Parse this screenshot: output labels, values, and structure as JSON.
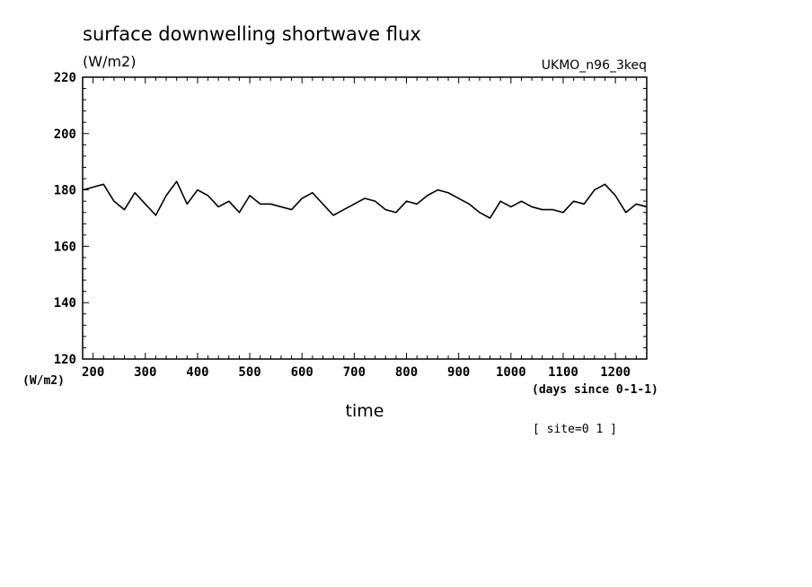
{
  "chart_data": {
    "type": "line",
    "title": "surface downwelling shortwave flux",
    "units_label": "(W/m2)",
    "model_label": "UKMO_n96_3keq",
    "y_axis_unit": "(W/m2)",
    "xlabel": "time",
    "x_unit": "(days since 0-1-1)",
    "site_label": "[ site=0 1 ]",
    "xlim": [
      180,
      1260
    ],
    "ylim": [
      120,
      220
    ],
    "xticks": [
      200,
      300,
      400,
      500,
      600,
      700,
      800,
      900,
      1000,
      1100,
      1200
    ],
    "yticks": [
      120,
      140,
      160,
      180,
      200,
      220
    ],
    "grid": false,
    "series": [
      {
        "x": [
          180,
          200,
          220,
          240,
          260,
          280,
          300,
          320,
          340,
          360,
          380,
          400,
          420,
          440,
          460,
          480,
          500,
          520,
          540,
          560,
          580,
          600,
          620,
          640,
          660,
          680,
          700,
          720,
          740,
          760,
          780,
          800,
          820,
          840,
          860,
          880,
          900,
          920,
          940,
          960,
          980,
          1000,
          1020,
          1040,
          1060,
          1080,
          1100,
          1120,
          1140,
          1160,
          1180,
          1200,
          1220,
          1240,
          1260
        ],
        "values": [
          180,
          181,
          182,
          176,
          173,
          179,
          175,
          171,
          178,
          183,
          175,
          180,
          178,
          174,
          176,
          172,
          178,
          175,
          175,
          174,
          173,
          177,
          179,
          175,
          171,
          173,
          175,
          177,
          176,
          173,
          172,
          176,
          175,
          178,
          180,
          179,
          177,
          175,
          172,
          170,
          176,
          174,
          176,
          174,
          173,
          173,
          172,
          176,
          175,
          180,
          182,
          178,
          172,
          175,
          174
        ]
      }
    ]
  }
}
